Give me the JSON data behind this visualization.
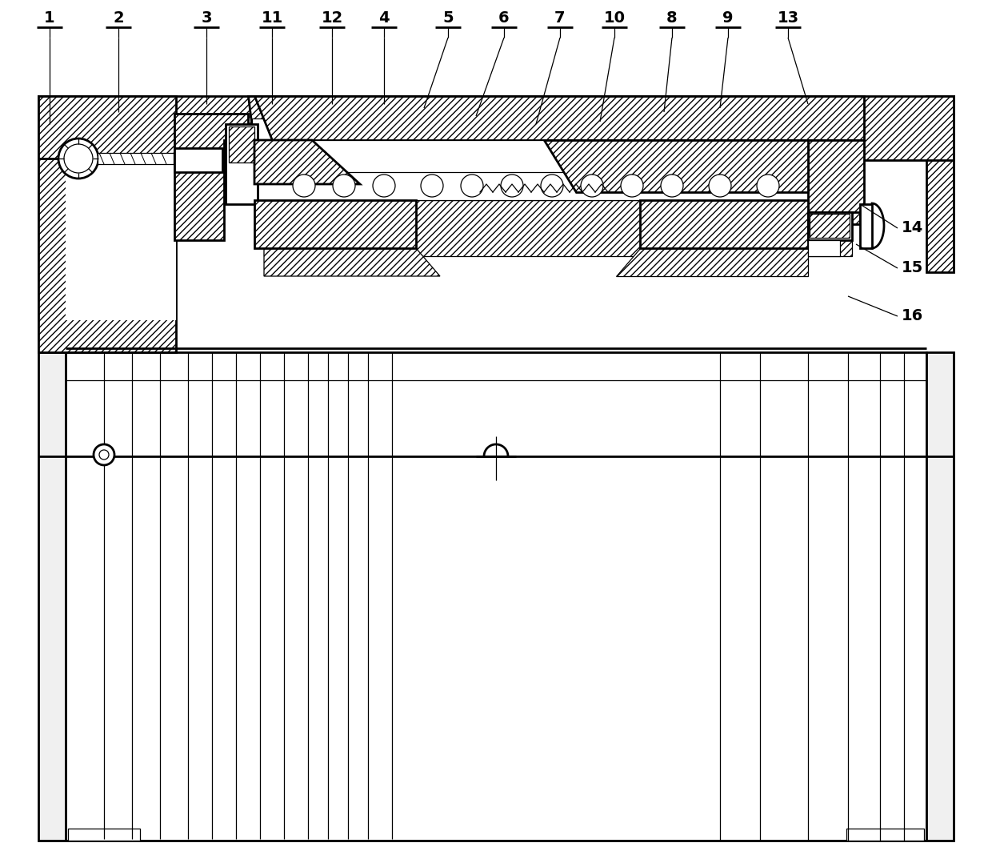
{
  "bg_color": "#ffffff",
  "line_color": "#000000",
  "lw_main": 2.0,
  "lw_med": 1.4,
  "lw_thin": 0.9,
  "label_font_size": 14,
  "top_labels": [
    [
      "1",
      62,
      22,
      62,
      155
    ],
    [
      "2",
      148,
      22,
      148,
      140
    ],
    [
      "3",
      258,
      22,
      258,
      130
    ],
    [
      "11",
      340,
      22,
      340,
      130
    ],
    [
      "12",
      415,
      22,
      415,
      130
    ],
    [
      "4",
      480,
      22,
      480,
      130
    ],
    [
      "5",
      560,
      22,
      530,
      135
    ],
    [
      "6",
      630,
      22,
      595,
      145
    ],
    [
      "7",
      700,
      22,
      670,
      155
    ],
    [
      "10",
      768,
      22,
      750,
      152
    ],
    [
      "8",
      840,
      22,
      830,
      140
    ],
    [
      "9",
      910,
      22,
      900,
      135
    ],
    [
      "13",
      985,
      22,
      1010,
      130
    ]
  ],
  "right_labels": [
    [
      "14",
      1140,
      285,
      1075,
      255
    ],
    [
      "15",
      1140,
      335,
      1070,
      305
    ],
    [
      "16",
      1140,
      395,
      1060,
      370
    ]
  ]
}
